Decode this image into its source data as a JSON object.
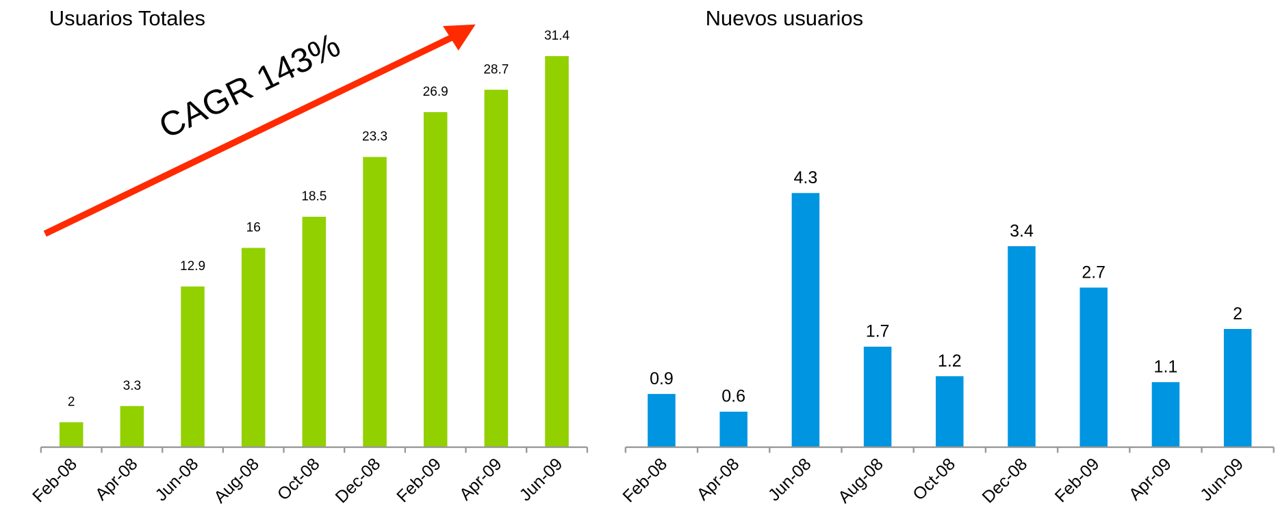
{
  "chart_data": [
    {
      "type": "bar",
      "title": "Usuarios Totales",
      "categories": [
        "Feb-08",
        "Apr-08",
        "Jun-08",
        "Aug-08",
        "Oct-08",
        "Dec-08",
        "Feb-09",
        "Apr-09",
        "Jun-09"
      ],
      "values": [
        2,
        3.3,
        12.9,
        16,
        18.5,
        23.3,
        26.9,
        28.7,
        31.4
      ],
      "color": "#92d000",
      "ylim": [
        0,
        36
      ],
      "annotation": "CAGR 143%",
      "annotation_color": "#ff2a00"
    },
    {
      "type": "bar",
      "title": "Nuevos usuarios",
      "categories": [
        "Feb-08",
        "Apr-08",
        "Jun-08",
        "Aug-08",
        "Oct-08",
        "Dec-08",
        "Feb-09",
        "Apr-09",
        "Jun-09"
      ],
      "values": [
        0.9,
        0.6,
        4.3,
        1.7,
        1.2,
        3.4,
        2.7,
        1.1,
        2
      ],
      "color": "#0095e0",
      "ylim": [
        0,
        7.5
      ]
    }
  ]
}
